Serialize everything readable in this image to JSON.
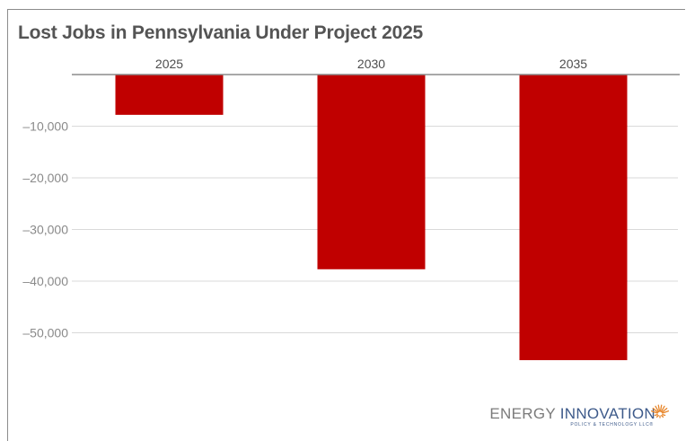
{
  "chart_data": {
    "type": "bar",
    "title": "Lost Jobs in Pennsylvania Under Project 2025",
    "categories": [
      "2025",
      "2030",
      "2035"
    ],
    "values": [
      -7800,
      -37700,
      -55300
    ],
    "ylim": [
      -60000,
      0
    ],
    "yticks": [
      -10000,
      -20000,
      -30000,
      -40000,
      -50000
    ],
    "ytick_labels": [
      "–10,000",
      "–20,000",
      "–30,000",
      "–40,000",
      "–50,000"
    ],
    "xaxis_position": "top",
    "grid": true,
    "bar_color": "#c00000",
    "xlabel": "",
    "ylabel": ""
  },
  "logo": {
    "word1": "ENERGY",
    "word2": "INNOVATION",
    "subtitle": "POLICY & TECHNOLOGY LLC®",
    "accent_color": "#e8862a",
    "brand_color": "#3d5a8a"
  }
}
